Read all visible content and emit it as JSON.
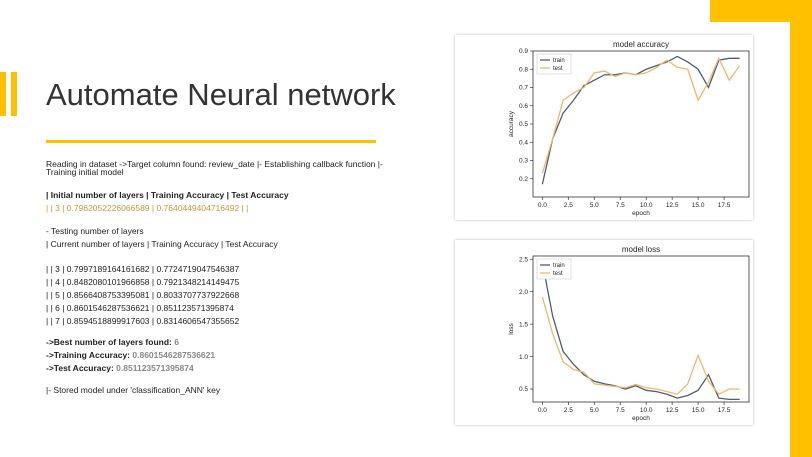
{
  "slide": {
    "title": "Automate Neural network",
    "intro": "Reading in dataset ->Target column found: review_date |- Establishing callback function |-",
    "intro2": "Training initial model",
    "header_row": "| Initial number of layers | Training Accuracy | Test Accuracy",
    "initial_row": "| | 3 | 0.7962052226066589 | 0.7640449404716492 | |",
    "testing_label": "- Testing number of layers",
    "testing_header": "| Current number of layers | Training Accuracy | Test Accuracy",
    "rows": [
      "| | 3 | 0.7997189164161682 | 0.7724719047546387",
      "| | 4 | 0.8482080101966858 | 0.7921348214149475",
      "| | 5 | 0.8566408753395081 | 0.8033707737922668",
      "| | 6 | 0.8601546287536621 | 0.851123571395874",
      "| | 7 | 0.8594518899917603 | 0.8314606547355652"
    ],
    "best_label": "->Best number of layers found:",
    "best_value": "6",
    "train_acc_label": "->Training Accuracy:",
    "train_acc_value": "0.8601546287536621",
    "test_acc_label": "->Test Accuracy:",
    "test_acc_value": "0.851123571395874",
    "stored": "|- Stored model under 'classification_ANN' key"
  },
  "colors": {
    "accent": "#FFC000",
    "train": "#4C5E72",
    "test": "#F2B56B"
  },
  "chart_data": [
    {
      "type": "line",
      "title": "model accuracy",
      "xlabel": "epoch",
      "ylabel": "accuracy",
      "xlim": [
        -0.9,
        19.9
      ],
      "ylim": [
        0.1,
        0.9
      ],
      "xticks": [
        0.0,
        2.5,
        5.0,
        7.5,
        10.0,
        12.5,
        15.0,
        17.5
      ],
      "xtick_labels": [
        "0.0",
        "2.5",
        "5.0",
        "7.5",
        "10.0",
        "12.5",
        "15.0",
        "17.5"
      ],
      "yticks": [
        0.2,
        0.3,
        0.4,
        0.5,
        0.6,
        0.7,
        0.8,
        0.9
      ],
      "ytick_labels": [
        "0.2",
        "0.3",
        "0.4",
        "0.5",
        "0.6",
        "0.7",
        "0.8",
        "0.9"
      ],
      "legend": "upper-left",
      "x": [
        0,
        1,
        2,
        3,
        4,
        5,
        6,
        7,
        8,
        9,
        10,
        11,
        12,
        13,
        14,
        15,
        16,
        17,
        18,
        19
      ],
      "series": [
        {
          "name": "train",
          "values": [
            0.17,
            0.42,
            0.56,
            0.63,
            0.71,
            0.74,
            0.77,
            0.77,
            0.78,
            0.77,
            0.8,
            0.82,
            0.84,
            0.87,
            0.84,
            0.8,
            0.7,
            0.85,
            0.86,
            0.86
          ]
        },
        {
          "name": "test",
          "values": [
            0.23,
            0.42,
            0.63,
            0.67,
            0.7,
            0.78,
            0.79,
            0.76,
            0.78,
            0.77,
            0.78,
            0.81,
            0.85,
            0.81,
            0.8,
            0.63,
            0.73,
            0.86,
            0.74,
            0.82
          ]
        }
      ]
    },
    {
      "type": "line",
      "title": "model loss",
      "xlabel": "epoch",
      "ylabel": "loss",
      "xlim": [
        -0.9,
        19.9
      ],
      "ylim": [
        0.3,
        2.55
      ],
      "xticks": [
        0.0,
        2.5,
        5.0,
        7.5,
        10.0,
        12.5,
        15.0,
        17.5
      ],
      "xtick_labels": [
        "0.0",
        "2.5",
        "5.0",
        "7.5",
        "10.0",
        "12.5",
        "15.0",
        "17.5"
      ],
      "yticks": [
        0.5,
        1.0,
        1.5,
        2.0,
        2.5
      ],
      "ytick_labels": [
        "0.5",
        "1.0",
        "1.5",
        "2.0",
        "2.5"
      ],
      "legend": "upper-left",
      "x": [
        0,
        1,
        2,
        3,
        4,
        5,
        6,
        7,
        8,
        9,
        10,
        11,
        12,
        13,
        14,
        15,
        16,
        17,
        18,
        19
      ],
      "series": [
        {
          "name": "train",
          "values": [
            2.45,
            1.62,
            1.08,
            0.88,
            0.72,
            0.62,
            0.58,
            0.55,
            0.5,
            0.55,
            0.48,
            0.46,
            0.42,
            0.36,
            0.4,
            0.48,
            0.72,
            0.36,
            0.34,
            0.34
          ]
        },
        {
          "name": "test",
          "values": [
            1.92,
            1.35,
            0.92,
            0.8,
            0.76,
            0.58,
            0.56,
            0.54,
            0.52,
            0.57,
            0.52,
            0.5,
            0.46,
            0.42,
            0.58,
            1.02,
            0.62,
            0.42,
            0.5,
            0.5
          ]
        }
      ]
    }
  ]
}
